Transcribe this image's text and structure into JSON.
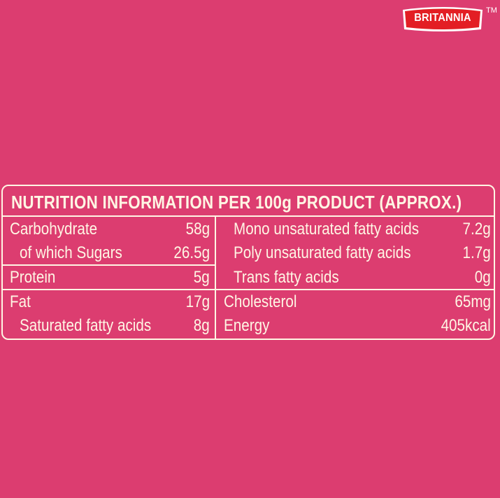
{
  "brand": {
    "logo_text": "BRITANNIA",
    "trademark": "TM",
    "logo_color": "#e31e24"
  },
  "background_color": "#dc3d70",
  "table": {
    "title": "NUTRITION INFORMATION PER 100g PRODUCT (APPROX.)",
    "left_rows": [
      {
        "label": "Carbohydrate",
        "value": "58g"
      },
      {
        "label": "of which Sugars",
        "value": "26.5g"
      },
      {
        "label": "Protein",
        "value": "5g"
      },
      {
        "label": "Fat",
        "value": "17g"
      },
      {
        "label": "Saturated fatty acids",
        "value": "8g"
      }
    ],
    "right_rows": [
      {
        "label": "Mono unsaturated fatty acids",
        "value": "7.2g"
      },
      {
        "label": "Poly unsaturated fatty acids",
        "value": "1.7g"
      },
      {
        "label": "Trans fatty acids",
        "value": "0g"
      },
      {
        "label": "Cholesterol",
        "value": "65mg"
      },
      {
        "label": "Energy",
        "value": "405kcal"
      }
    ]
  }
}
